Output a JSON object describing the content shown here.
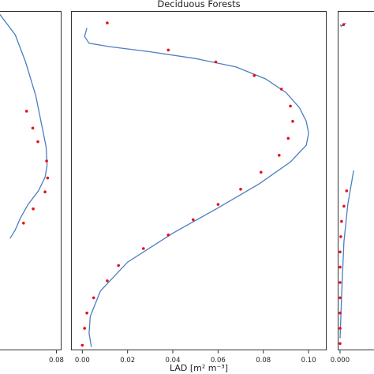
{
  "colors": {
    "curve": "#4a7fc1",
    "points": "#e8101a",
    "frame": "#333333"
  },
  "chart_data": [
    {
      "type": "scatter",
      "title": "",
      "xlabel": "",
      "xlim": [
        -0.045,
        0.09
      ],
      "ylim": [
        0,
        1
      ],
      "xticks": [
        {
          "value": 0.08,
          "label": "0.08"
        }
      ],
      "series": [
        {
          "kind": "line",
          "x": [
            -0.03,
            0.0,
            0.02,
            0.04,
            0.06,
            0.062,
            0.058,
            0.045,
            0.025,
            0.01,
            0.0,
            -0.01
          ],
          "y": [
            0.99,
            0.93,
            0.85,
            0.75,
            0.6,
            0.545,
            0.51,
            0.47,
            0.43,
            0.39,
            0.355,
            0.33
          ]
        },
        {
          "kind": "points",
          "x": [
            0.022,
            0.034,
            0.044,
            0.061,
            0.063,
            0.058,
            0.035,
            0.016
          ],
          "y": [
            0.705,
            0.655,
            0.615,
            0.558,
            0.508,
            0.467,
            0.417,
            0.375
          ]
        }
      ]
    },
    {
      "type": "scatter",
      "title": "Deciduous Forests",
      "xlabel": "LAD [m² m⁻³]",
      "xlim": [
        -0.005,
        0.108
      ],
      "ylim": [
        0,
        1
      ],
      "xticks": [
        {
          "value": 0.0,
          "label": "0.00"
        },
        {
          "value": 0.02,
          "label": "0.02"
        },
        {
          "value": 0.04,
          "label": "0.04"
        },
        {
          "value": 0.06,
          "label": "0.06"
        },
        {
          "value": 0.08,
          "label": "0.08"
        },
        {
          "value": 0.1,
          "label": "0.10"
        }
      ],
      "series": [
        {
          "kind": "line",
          "x": [
            0.004,
            0.003,
            0.0035,
            0.008,
            0.02,
            0.04,
            0.06,
            0.078,
            0.092,
            0.099,
            0.1,
            0.099,
            0.096,
            0.09,
            0.081,
            0.068,
            0.05,
            0.03,
            0.012,
            0.003,
            0.001,
            0.002
          ],
          "y": [
            0.01,
            0.05,
            0.1,
            0.175,
            0.26,
            0.345,
            0.42,
            0.49,
            0.555,
            0.605,
            0.64,
            0.675,
            0.715,
            0.76,
            0.8,
            0.835,
            0.86,
            0.88,
            0.895,
            0.905,
            0.925,
            0.95
          ]
        },
        {
          "kind": "points",
          "x": [
            0.0,
            0.001,
            0.002,
            0.005,
            0.011,
            0.016,
            0.027,
            0.038,
            0.049,
            0.06,
            0.07,
            0.079,
            0.087,
            0.091,
            0.093,
            0.092,
            0.088,
            0.076,
            0.059,
            0.038,
            0.011
          ],
          "y": [
            0.015,
            0.065,
            0.11,
            0.155,
            0.205,
            0.25,
            0.3,
            0.34,
            0.385,
            0.43,
            0.475,
            0.525,
            0.575,
            0.625,
            0.675,
            0.72,
            0.77,
            0.81,
            0.85,
            0.885,
            0.965
          ]
        }
      ]
    },
    {
      "type": "scatter",
      "title": "",
      "xlabel": "",
      "xlim": [
        -0.006,
        0.12
      ],
      "ylim": [
        0,
        1
      ],
      "xticks": [
        {
          "value": 0.0,
          "label": "0.000"
        }
      ],
      "series": [
        {
          "kind": "line",
          "x": [
            0.0,
            0.005,
            0.01,
            0.02,
            0.035
          ],
          "y": [
            0.035,
            0.19,
            0.32,
            0.43,
            0.53
          ]
        },
        {
          "kind": "line",
          "x": [
            0.001,
            0.003,
            0.015
          ],
          "y": [
            0.96,
            0.955,
            0.965
          ]
        },
        {
          "kind": "points",
          "x": [
            0.0,
            0.0,
            0.0,
            0.0,
            0.0,
            0.0,
            0.0,
            0.002,
            0.004,
            0.01,
            0.017,
            0.009
          ],
          "y": [
            0.02,
            0.065,
            0.11,
            0.155,
            0.2,
            0.245,
            0.29,
            0.335,
            0.38,
            0.425,
            0.47,
            0.96
          ]
        }
      ]
    }
  ]
}
